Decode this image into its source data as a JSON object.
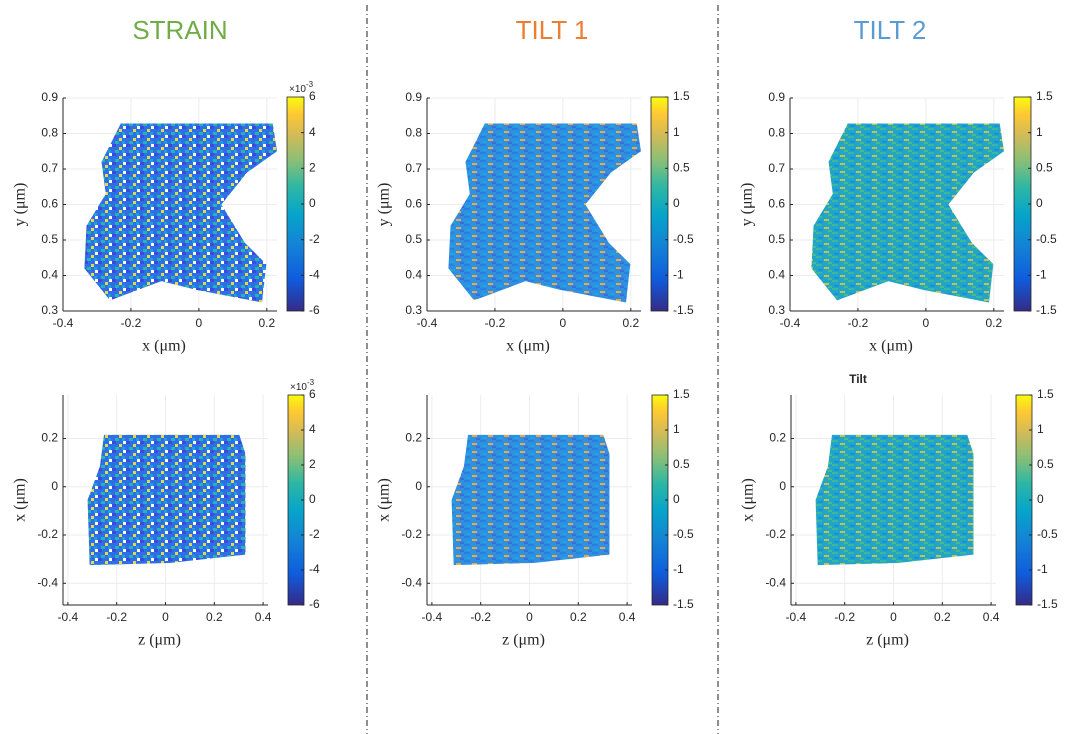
{
  "columns": [
    {
      "title": "STRAIN",
      "color": "#70ad47"
    },
    {
      "title": "TILT 1",
      "color": "#ed7d31"
    },
    {
      "title": "TILT 2",
      "color": "#5b9bd5"
    }
  ],
  "panel_title": "Tilt",
  "chart_data": [
    {
      "type": "heatmap",
      "xlabel": "x (μm)",
      "ylabel": "y (μm)",
      "xlim": [
        -0.4,
        0.23
      ],
      "ylim": [
        0.3,
        0.9
      ],
      "xticks": [
        -0.4,
        -0.2,
        0,
        0.2
      ],
      "yticks": [
        0.3,
        0.4,
        0.5,
        0.6,
        0.7,
        0.8,
        0.9
      ],
      "colormap": "parula",
      "colorbar": {
        "lim": [
          -6,
          6
        ],
        "ticks": [
          -6,
          -4,
          -2,
          0,
          2,
          4,
          6
        ],
        "multiplier": {
          "base": "×10",
          "exponent": "-3"
        }
      }
    },
    {
      "type": "heatmap",
      "xlabel": "x (μm)",
      "ylabel": "y (μm)",
      "xlim": [
        -0.4,
        0.23
      ],
      "ylim": [
        0.3,
        0.9
      ],
      "xticks": [
        -0.4,
        -0.2,
        0,
        0.2
      ],
      "yticks": [
        0.3,
        0.4,
        0.5,
        0.6,
        0.7,
        0.8,
        0.9
      ],
      "colormap": "parula",
      "colorbar": {
        "lim": [
          -1.5,
          1.5
        ],
        "ticks": [
          -1.5,
          -1,
          -0.5,
          0,
          0.5,
          1,
          1.5
        ]
      }
    },
    {
      "type": "heatmap",
      "xlabel": "x (μm)",
      "ylabel": "y (μm)",
      "xlim": [
        -0.4,
        0.23
      ],
      "ylim": [
        0.3,
        0.9
      ],
      "xticks": [
        -0.4,
        -0.2,
        0,
        0.2
      ],
      "yticks": [
        0.3,
        0.4,
        0.5,
        0.6,
        0.7,
        0.8,
        0.9
      ],
      "colormap": "parula",
      "colorbar": {
        "lim": [
          -1.5,
          1.5
        ],
        "ticks": [
          -1.5,
          -1,
          -0.5,
          0,
          0.5,
          1,
          1.5
        ]
      }
    },
    {
      "type": "heatmap",
      "xlabel": "z (μm)",
      "ylabel": "x (μm)",
      "xlim": [
        -0.42,
        0.42
      ],
      "ylim": [
        -0.49,
        0.38
      ],
      "xticks": [
        -0.4,
        -0.2,
        0,
        0.2,
        0.4
      ],
      "yticks": [
        -0.4,
        -0.2,
        0,
        0.2
      ],
      "colormap": "parula",
      "colorbar": {
        "lim": [
          -6,
          6
        ],
        "ticks": [
          -6,
          -4,
          -2,
          0,
          2,
          4,
          6
        ],
        "multiplier": {
          "base": "×10",
          "exponent": "-3"
        }
      }
    },
    {
      "type": "heatmap",
      "xlabel": "z (μm)",
      "ylabel": "x (μm)",
      "xlim": [
        -0.42,
        0.42
      ],
      "ylim": [
        -0.49,
        0.38
      ],
      "xticks": [
        -0.4,
        -0.2,
        0,
        0.2,
        0.4
      ],
      "yticks": [
        -0.4,
        -0.2,
        0,
        0.2
      ],
      "colormap": "parula",
      "colorbar": {
        "lim": [
          -1.5,
          1.5
        ],
        "ticks": [
          -1.5,
          -1,
          -0.5,
          0,
          0.5,
          1,
          1.5
        ]
      }
    },
    {
      "type": "heatmap",
      "xlabel": "z (μm)",
      "ylabel": "x (μm)",
      "xlim": [
        -0.42,
        0.42
      ],
      "ylim": [
        -0.49,
        0.38
      ],
      "xticks": [
        -0.4,
        -0.2,
        0,
        0.2,
        0.4
      ],
      "yticks": [
        -0.4,
        -0.2,
        0,
        0.2
      ],
      "colormap": "parula",
      "colorbar": {
        "lim": [
          -1.5,
          1.5
        ],
        "ticks": [
          -1.5,
          -1,
          -0.5,
          0,
          0.5,
          1,
          1.5
        ]
      }
    }
  ]
}
